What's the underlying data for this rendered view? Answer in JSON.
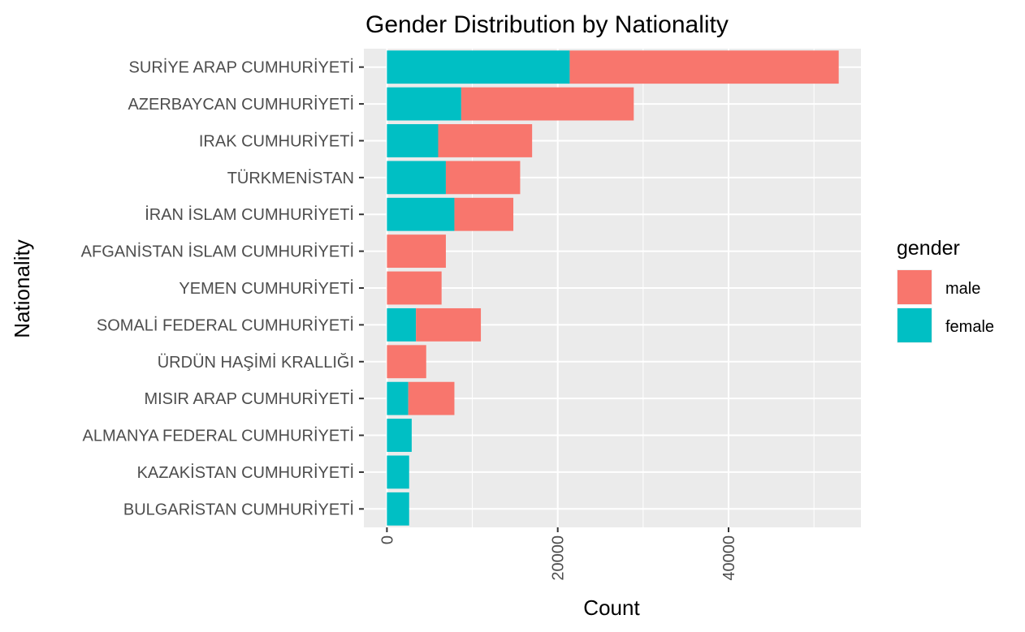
{
  "chart_data": {
    "type": "bar",
    "orientation": "horizontal",
    "stacked": true,
    "title": "Gender Distribution by Nationality",
    "xlabel": "Count",
    "ylabel": "Nationality",
    "xlim": [
      -2700,
      55500
    ],
    "xticks": [
      0,
      20000,
      40000
    ],
    "xtick_labels": [
      "0",
      "20000",
      "40000"
    ],
    "grid": true,
    "legend": {
      "title": "gender",
      "position": "right"
    },
    "categories": [
      "SURİYE ARAP CUMHURİYETİ",
      "AZERBAYCAN CUMHURİYETİ",
      "IRAK CUMHURİYETİ",
      "TÜRKMENİSTAN",
      "İRAN İSLAM CUMHURİYETİ",
      "AFGANİSTAN İSLAM CUMHURİYETİ",
      "YEMEN CUMHURİYETİ",
      "SOMALİ FEDERAL CUMHURİYETİ",
      "ÜRDÜN HAŞİMİ KRALLIĞI",
      "MISIR ARAP CUMHURİYETİ",
      "ALMANYA FEDERAL CUMHURİYETİ",
      "KAZAKİSTAN CUMHURİYETİ",
      "BULGARİSTAN CUMHURİYETİ"
    ],
    "series": [
      {
        "name": "female",
        "color": "#00BFC4",
        "values": [
          21400,
          8700,
          6000,
          6900,
          7900,
          0,
          0,
          3400,
          0,
          2500,
          2900,
          2600,
          2600
        ]
      },
      {
        "name": "male",
        "color": "#F8766D",
        "values": [
          31500,
          20200,
          11000,
          8700,
          6900,
          6900,
          6400,
          7600,
          4600,
          5400,
          0,
          0,
          0
        ]
      }
    ],
    "legend_order": [
      "male",
      "female"
    ]
  }
}
